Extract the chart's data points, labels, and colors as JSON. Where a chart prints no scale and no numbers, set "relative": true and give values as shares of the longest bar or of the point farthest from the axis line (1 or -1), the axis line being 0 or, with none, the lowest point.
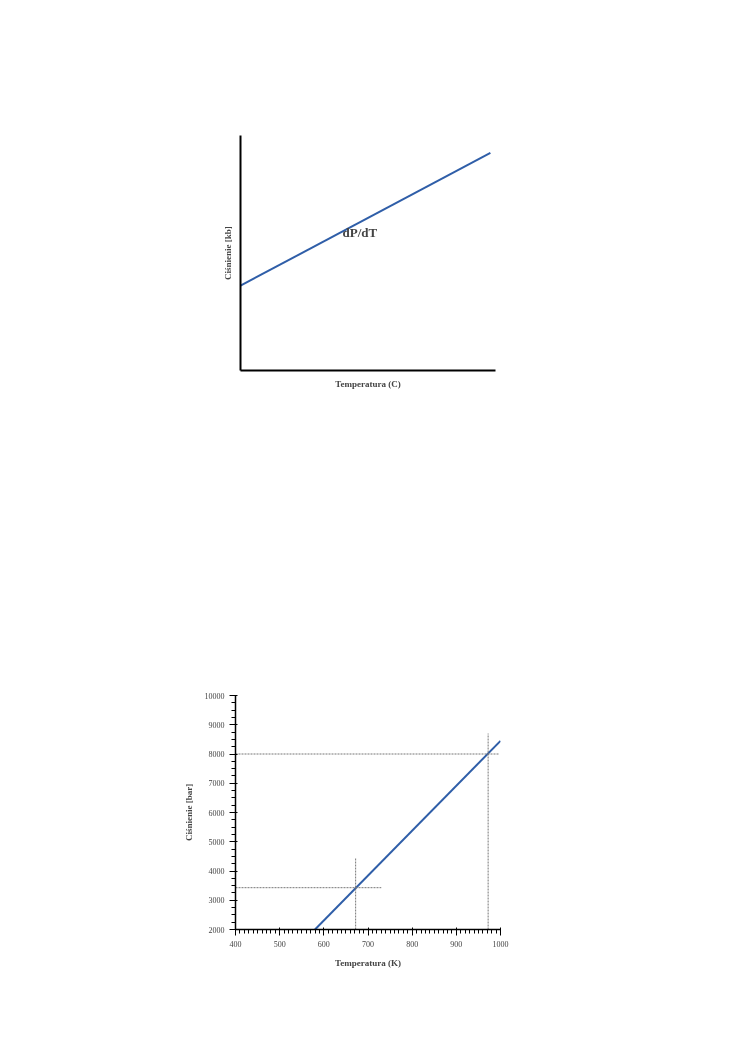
{
  "chart_data": [
    {
      "type": "line",
      "relative": true,
      "xlabel": "Temperatura (C)",
      "ylabel": "Ciśnienie [kb]",
      "categories": [
        null,
        null
      ],
      "annotations": [
        "dP/dT"
      ],
      "series": [
        {
          "color": "#2f5ea8",
          "values": [
            0.39,
            1
          ]
        }
      ]
    },
    {
      "type": "line",
      "xlabel": "Temperatura (K)",
      "ylabel": "Ciśnienie [bar]",
      "xlim": [
        400,
        1000
      ],
      "ylim": [
        2000,
        10000
      ],
      "xticks": [
        400,
        500,
        600,
        700,
        800,
        900,
        1000
      ],
      "yticks": [
        2000,
        3000,
        4000,
        5000,
        6000,
        7000,
        8000,
        9000,
        10000
      ],
      "series": [
        {
          "color": "#2f5ea8",
          "x": [
            580,
            1000
          ],
          "values": [
            2000,
            8450
          ],
          "line_style": "solid"
        },
        {
          "color": "#777777",
          "x": [
            400,
            997
          ],
          "values": [
            8000,
            8000
          ],
          "line_style": "dotted"
        },
        {
          "color": "#777777",
          "x": [
            972,
            972
          ],
          "values": [
            2000,
            8700
          ],
          "line_style": "dotted"
        },
        {
          "color": "#777777",
          "x": [
            400,
            730
          ],
          "values": [
            3430,
            3430
          ],
          "line_style": "dotted"
        },
        {
          "color": "#777777",
          "x": [
            672,
            672
          ],
          "values": [
            2000,
            4450
          ],
          "line_style": "dotted"
        }
      ]
    }
  ]
}
